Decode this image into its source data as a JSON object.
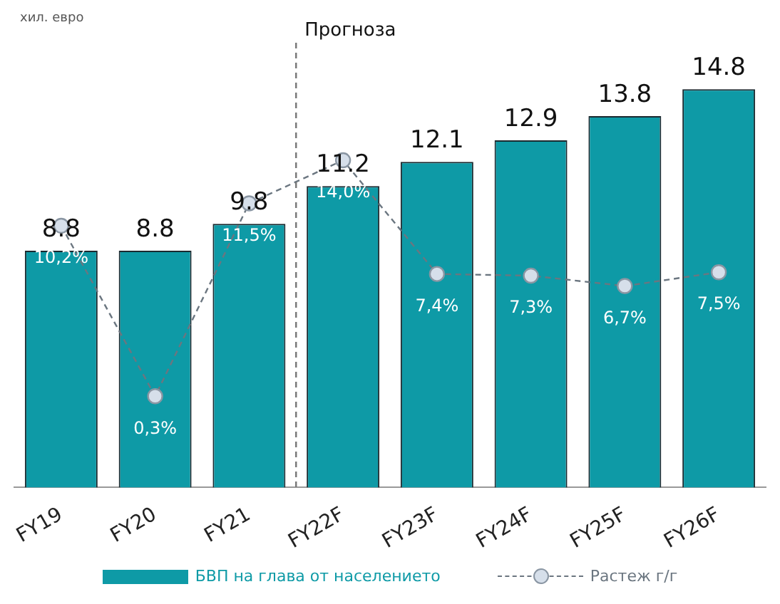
{
  "chart_data": {
    "type": "bar",
    "title": "хил. евро",
    "categories": [
      "FY19",
      "FY20",
      "FY21",
      "FY22F",
      "FY23F",
      "FY24F",
      "FY25F",
      "FY26F"
    ],
    "series": [
      {
        "name": "БВП на глава от населението",
        "color": "#0e9aa6",
        "values": [
          8.8,
          8.8,
          9.8,
          11.2,
          12.1,
          12.9,
          13.8,
          14.8
        ]
      },
      {
        "name": "Растеж г/г",
        "type": "line",
        "axis": "y2",
        "color": "#6b7680",
        "marker": "circle",
        "line_style": "dashed",
        "values": [
          10.2,
          0.3,
          11.5,
          14.0,
          7.4,
          7.3,
          6.7,
          7.5
        ],
        "value_labels": [
          "10,2%",
          "0,3%",
          "11,5%",
          "14,0%",
          "7,4%",
          "7,3%",
          "6,7%",
          "7,5%"
        ]
      }
    ],
    "tick_labels": "x",
    "data_labels": true,
    "grid": false,
    "legend": "bottom",
    "annotations": [
      "Прогноза"
    ]
  }
}
